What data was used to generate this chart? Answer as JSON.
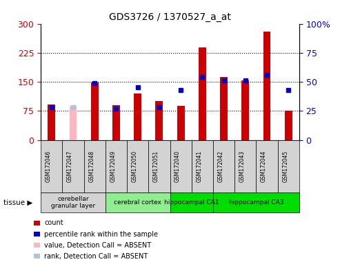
{
  "title": "GDS3726 / 1370527_a_at",
  "samples": [
    "GSM172046",
    "GSM172047",
    "GSM172048",
    "GSM172049",
    "GSM172050",
    "GSM172051",
    "GSM172040",
    "GSM172041",
    "GSM172042",
    "GSM172043",
    "GSM172044",
    "GSM172045"
  ],
  "count_values": [
    92,
    0,
    148,
    90,
    120,
    100,
    88,
    238,
    163,
    153,
    280,
    75
  ],
  "count_absent": [
    0,
    88,
    0,
    0,
    0,
    0,
    0,
    0,
    0,
    0,
    0,
    0
  ],
  "rank_values": [
    28,
    0,
    49,
    27,
    45,
    28,
    43,
    54,
    51,
    51,
    56,
    43
  ],
  "rank_absent": [
    0,
    28,
    0,
    0,
    0,
    0,
    0,
    0,
    0,
    0,
    0,
    0
  ],
  "is_absent": [
    false,
    true,
    false,
    false,
    false,
    false,
    false,
    false,
    false,
    false,
    false,
    false
  ],
  "tissue_col_counts": [
    3,
    3,
    2,
    4
  ],
  "tissue_starts": [
    0,
    3,
    6,
    8
  ],
  "tissue_labels": [
    "cerebellar\ngranular layer",
    "cerebral cortex",
    "hippocampal CA1",
    "hippocampal CA3"
  ],
  "tissue_colors": [
    "#d3d3d3",
    "#90ee90",
    "#00dd00",
    "#00dd00"
  ],
  "ylim_left": [
    0,
    300
  ],
  "ylim_right": [
    0,
    100
  ],
  "yticks_left": [
    0,
    75,
    150,
    225,
    300
  ],
  "yticks_right": [
    0,
    25,
    50,
    75,
    100
  ],
  "color_count": "#cc0000",
  "color_rank": "#0000cc",
  "color_absent_count": "#ffb6c1",
  "color_absent_rank": "#b0c4de",
  "figsize": [
    4.93,
    3.84
  ],
  "dpi": 100,
  "legend_items": [
    {
      "color": "#cc0000",
      "label": "count"
    },
    {
      "color": "#0000cc",
      "label": "percentile rank within the sample"
    },
    {
      "color": "#ffb6c1",
      "label": "value, Detection Call = ABSENT"
    },
    {
      "color": "#b0c4de",
      "label": "rank, Detection Call = ABSENT"
    }
  ]
}
